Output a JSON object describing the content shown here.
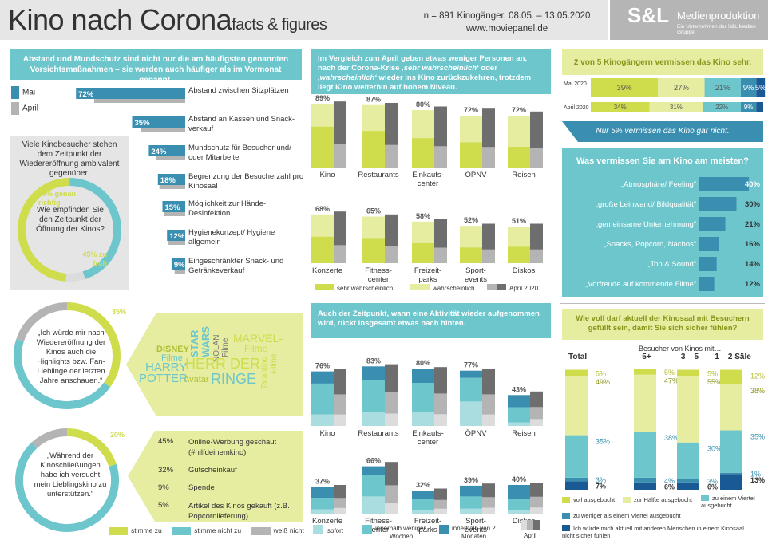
{
  "header": {
    "title": "Kino nach Corona",
    "subtitle": "facts & figures",
    "meta_line1": "n = 891 Kinogänger, 08.05. – 13.05.2020",
    "meta_line2": "www.moviepanel.de",
    "brand_logo": "S&L",
    "brand_name": "Medienproduktion",
    "brand_sub": "Ein Unternehmen der S&L Medien Gruppe"
  },
  "colors": {
    "teal": "#6cc6cc",
    "teal_dark": "#3a8fb0",
    "teal_light": "#a9dde0",
    "navy": "#1a5a94",
    "lime": "#cfdc4b",
    "lime_light": "#e6eca0",
    "grey": "#b4b4b4",
    "grey_dark": "#6e6e6e",
    "grey_light": "#dcdcdc"
  },
  "measures": {
    "intro": "Abstand und Mundschutz sind nicht nur die am häufigsten genannten Vorsichtsmaßnahmen – sie werden auch häufiger als im Vormonat genannt.",
    "legend_may": "Mai",
    "legend_april": "April",
    "chart_data": {
      "type": "bar",
      "categories": [
        "Abstand zwischen Sitzplätzen",
        "Abstand an Kassen und Snack-verkauf",
        "Mundschutz für Besucher und/ oder Mitarbeiter",
        "Begrenzung der Besucherzahl pro Kinosaal",
        "Möglichkeit zur Hände-Desinfektion",
        "Hygienekonzept/ Hygiene allgemein",
        "Eingeschränkter Snack- und Getränkeverkauf"
      ],
      "series": [
        {
          "name": "Mai",
          "values": [
            72,
            35,
            24,
            18,
            15,
            12,
            9
          ]
        },
        {
          "name": "April",
          "values": [
            60,
            29,
            19,
            17,
            14,
            11,
            7
          ]
        }
      ],
      "labels": [
        "72%",
        "35%",
        "24%",
        "18%",
        "15%",
        "12%",
        "9%"
      ]
    }
  },
  "opening": {
    "title": "Viele Kinobesucher stehen dem Zeitpunkt der Wiedereröffnung ambivalent gegenüber.",
    "question": "Wie empfinden Sie den Zeitpunkt der Öffnung der Kinos?",
    "label_right": "49% genau richtig",
    "label_early": "45% zu früh",
    "chart_data": {
      "type": "pie",
      "categories": [
        "genau richtig",
        "zu früh",
        "zu spät"
      ],
      "values": [
        49,
        45,
        6
      ]
    }
  },
  "highlights": {
    "quote": "„Ich würde mir nach Wiedereröffnung der Kinos auch die Highlights bzw. Fan-Lieblinge der letzten Jahre anschauen.“",
    "pct_label": "35%",
    "chart_data": {
      "type": "pie",
      "categories": [
        "stimme zu",
        "stimme nicht zu",
        "weiß nicht"
      ],
      "values": [
        35,
        45,
        20
      ]
    },
    "words": {
      "w1": "DISNEY",
      "w2": "Filme",
      "w3": "STAR",
      "w4": "WARS",
      "w5": "NOLAN",
      "w6": "Filme",
      "w7": "MARVEL-",
      "w8": "Filme",
      "w9": "HARRY",
      "w10": "POTTER",
      "w11": "HERR DER",
      "w12": "RINGE",
      "w13": "Avatar",
      "w14": "Tarantino",
      "w15": "Filme"
    }
  },
  "support": {
    "quote": "„Während der Kinoschließungen habe ich versucht mein Lieblingskino zu unterstützen.“",
    "pct_label": "20%",
    "chart_data": {
      "type": "pie",
      "categories": [
        "stimme zu",
        "stimme nicht zu",
        "weiß nicht"
      ],
      "values": [
        20,
        68,
        12
      ]
    },
    "items": [
      {
        "pct": "45%",
        "label": "Online-Werbung geschaut (#hilfdeinemkino)"
      },
      {
        "pct": "32%",
        "label": "Gutscheinkauf"
      },
      {
        "pct": "9%",
        "label": "Spende"
      },
      {
        "pct": "5%",
        "label": "Artikel des Kinos gekauft (z.B. Popcornlieferung)"
      }
    ],
    "legend": [
      "stimme zu",
      "stimme nicht zu",
      "weiß nicht"
    ]
  },
  "return": {
    "intro_a": "Im Vergleich zum April geben etwas weniger Personen an, nach der Corona-Krise ",
    "intro_b": "‚sehr wahrscheinlich‘",
    "intro_c": " oder ",
    "intro_d": "‚wahrscheinlich‘",
    "intro_e": " wieder ins Kino zurückzukehren, trotzdem liegt Kino weiterhin auf hohem Niveau.",
    "legend": [
      "sehr wahrscheinlich",
      "wahrscheinlich",
      "April 2020"
    ],
    "chart_data": {
      "type": "bar",
      "categories": [
        "Kino",
        "Restaurants",
        "Einkaufs-center",
        "ÖPNV",
        "Reisen",
        "Konzerte",
        "Fitness-center",
        "Freizeit-parks",
        "Sport-events",
        "Diskos"
      ],
      "series": [
        {
          "name": "sehr wahrscheinlich",
          "values": [
            57,
            51,
            41,
            35,
            29,
            37,
            34,
            28,
            22,
            23
          ]
        },
        {
          "name": "wahrscheinlich",
          "values": [
            32,
            36,
            39,
            37,
            43,
            31,
            31,
            30,
            30,
            28
          ]
        },
        {
          "name": "April 2020",
          "values": [
            92,
            90,
            85,
            82,
            78,
            72,
            68,
            62,
            55,
            55
          ]
        }
      ],
      "labels": [
        "89%",
        "87%",
        "80%",
        "72%",
        "72%",
        "68%",
        "65%",
        "58%",
        "52%",
        "51%"
      ]
    }
  },
  "timing": {
    "intro": "Auch der Zeitpunkt, wann eine Aktivität wieder aufgenommen wird, rückt insgesamt etwas nach hinten.",
    "legend": [
      "sofort",
      "innerhalb weniger Wochen",
      "innerhalb von 2 Monaten",
      "April"
    ],
    "chart_data": {
      "type": "bar",
      "categories": [
        "Kino",
        "Restaurants",
        "Einkaufs-center",
        "ÖPNV",
        "Reisen",
        "Konzerte",
        "Fitness-center",
        "Freizeit-parks",
        "Sport-events",
        "Diskos"
      ],
      "series": [
        {
          "name": "sofort",
          "values": [
            16,
            20,
            20,
            34,
            5,
            6,
            24,
            5,
            7,
            5
          ]
        },
        {
          "name": "innerhalb weniger Wochen",
          "values": [
            43,
            44,
            40,
            33,
            21,
            16,
            30,
            15,
            17,
            16
          ]
        },
        {
          "name": "innerhalb von 2 Monaten",
          "values": [
            17,
            19,
            20,
            10,
            17,
            15,
            12,
            12,
            15,
            19
          ]
        },
        {
          "name": "April",
          "values": [
            80,
            86,
            82,
            80,
            48,
            40,
            72,
            35,
            42,
            43
          ]
        }
      ],
      "labels": [
        "76%",
        "83%",
        "80%",
        "77%",
        "43%",
        "37%",
        "66%",
        "32%",
        "39%",
        "40%"
      ]
    }
  },
  "miss": {
    "title": "2 von 5 Kinogängern vermissen das Kino sehr.",
    "row1_label": "Mai 2020",
    "row2_label": "April 2020",
    "chart_data": {
      "type": "bar",
      "categories": [
        "Mai 2020",
        "April 2020"
      ],
      "series": [
        {
          "name": "sehr",
          "values": [
            39,
            34
          ]
        },
        {
          "name": "eher",
          "values": [
            27,
            31
          ]
        },
        {
          "name": "etwas",
          "values": [
            21,
            22
          ]
        },
        {
          "name": "wenig",
          "values": [
            9,
            9
          ]
        },
        {
          "name": "gar nicht",
          "values": [
            5,
            4
          ]
        }
      ],
      "labels_may": [
        "39%",
        "27%",
        "21%",
        "9%",
        "5%"
      ],
      "labels_april": [
        "34%",
        "31%",
        "22%",
        "9%"
      ]
    },
    "footer": "Nur 5% vermissen das Kino gar nicht."
  },
  "most_missed": {
    "title": "Was vermissen Sie am Kino am meisten?",
    "chart_data": {
      "type": "bar",
      "categories": [
        "„Atmosphäre/ Feeling“",
        "„große Leinwand/ Bildqualität“",
        "„gemeinsame Unternehmung“",
        "„Snacks, Popcorn, Nachos“",
        "„Ton & Sound“",
        "„Vorfreude auf kommende Filme“"
      ],
      "values": [
        40,
        30,
        21,
        16,
        14,
        12
      ],
      "labels": [
        "40%",
        "30%",
        "21%",
        "16%",
        "14%",
        "12%"
      ]
    }
  },
  "occupancy": {
    "title": "Wie voll darf aktuell der Kinosaal mit Besuchern gefüllt sein, damit Sie sich sicher fühlen?",
    "group_header": "Besucher von Kinos mit…",
    "legend": [
      "voll ausgebucht",
      "zur Hälfte ausgebucht",
      "zu einem Viertel ausgebucht",
      "zu weniger als einem Viertel ausgebucht",
      "Ich würde mich aktuell mit anderen Menschen in einem Kinosaal nicht sicher fühlen"
    ],
    "chart_data": {
      "type": "bar",
      "categories": [
        "Total",
        "5+",
        "3 – 5",
        "1 – 2 Säle"
      ],
      "series": [
        {
          "name": "voll ausgebucht",
          "values": [
            5,
            5,
            5,
            12
          ]
        },
        {
          "name": "zur Hälfte ausgebucht",
          "values": [
            49,
            47,
            55,
            38
          ]
        },
        {
          "name": "zu einem Viertel ausgebucht",
          "values": [
            35,
            38,
            30,
            35
          ]
        },
        {
          "name": "zu weniger als einem Viertel ausgebucht",
          "values": [
            3,
            4,
            3,
            1
          ]
        },
        {
          "name": "nicht sicher",
          "values": [
            7,
            6,
            6,
            13
          ]
        }
      ]
    }
  }
}
